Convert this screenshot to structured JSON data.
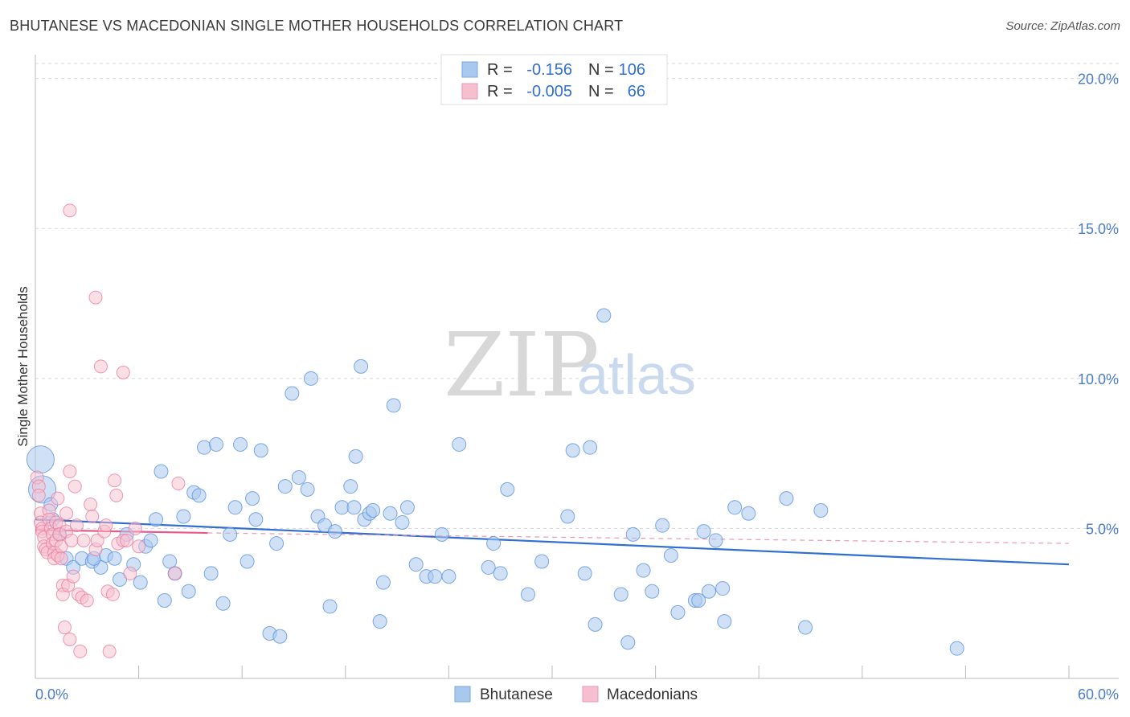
{
  "title": "BHUTANESE VS MACEDONIAN SINGLE MOTHER HOUSEHOLDS CORRELATION CHART",
  "source": "Source: ZipAtlas.com",
  "watermark": {
    "zip": "ZIP",
    "atlas": "atlas"
  },
  "colors": {
    "blue": "#5b93de",
    "blue_fill": "#a9c8ee",
    "pink": "#e8789c",
    "pink_fill": "#f5bfd0",
    "axis_text": "#4a7cc9",
    "grid": "#d8d8d8"
  },
  "legend": {
    "rows": [
      {
        "r_label": "R =",
        "r_value": "-0.156",
        "n_label": "N =",
        "n_value": "106"
      },
      {
        "r_label": "R =",
        "r_value": "-0.005",
        "n_label": "N =",
        "n_value": "66"
      }
    ]
  },
  "bottom_legend": {
    "series1": "Bhutanese",
    "series2": "Macedonians"
  },
  "chart_data": {
    "type": "scatter",
    "title": "BHUTANESE VS MACEDONIAN SINGLE MOTHER HOUSEHOLDS CORRELATION CHART",
    "xlabel": "",
    "ylabel": "Single Mother Households",
    "xlim": [
      0,
      60
    ],
    "ylim": [
      0,
      20.5
    ],
    "x_tick_labels": [
      "0.0%",
      "60.0%"
    ],
    "y_ticks": [
      5,
      10,
      15,
      20
    ],
    "y_tick_labels": [
      "5.0%",
      "10.0%",
      "15.0%",
      "20.0%"
    ],
    "series": [
      {
        "name": "Bhutanese",
        "r": -0.156,
        "n": 106,
        "trend": {
          "x": [
            0,
            60
          ],
          "y": [
            5.3,
            3.8
          ]
        },
        "points": [
          [
            0.3,
            7.3
          ],
          [
            0.4,
            6.3
          ],
          [
            0.9,
            5.8
          ],
          [
            1.0,
            5.3
          ],
          [
            1.4,
            4.8
          ],
          [
            1.8,
            4.0
          ],
          [
            2.2,
            3.7
          ],
          [
            2.7,
            4.0
          ],
          [
            3.3,
            3.9
          ],
          [
            3.8,
            3.7
          ],
          [
            3.4,
            4.0
          ],
          [
            4.1,
            4.1
          ],
          [
            4.6,
            4.0
          ],
          [
            4.9,
            3.3
          ],
          [
            5.3,
            4.8
          ],
          [
            5.7,
            3.8
          ],
          [
            6.1,
            3.2
          ],
          [
            6.4,
            4.4
          ],
          [
            6.7,
            4.6
          ],
          [
            7.0,
            5.3
          ],
          [
            7.3,
            6.9
          ],
          [
            7.5,
            2.6
          ],
          [
            7.8,
            3.9
          ],
          [
            8.1,
            3.5
          ],
          [
            8.6,
            5.4
          ],
          [
            8.9,
            2.9
          ],
          [
            9.2,
            6.2
          ],
          [
            9.5,
            6.1
          ],
          [
            9.8,
            7.7
          ],
          [
            10.2,
            3.5
          ],
          [
            10.5,
            7.8
          ],
          [
            10.9,
            2.5
          ],
          [
            11.3,
            4.8
          ],
          [
            11.6,
            5.7
          ],
          [
            11.9,
            7.8
          ],
          [
            12.3,
            3.9
          ],
          [
            12.6,
            6.0
          ],
          [
            12.8,
            5.3
          ],
          [
            13.1,
            7.6
          ],
          [
            13.6,
            1.5
          ],
          [
            14.0,
            4.5
          ],
          [
            14.2,
            1.4
          ],
          [
            14.5,
            6.4
          ],
          [
            14.9,
            9.5
          ],
          [
            15.3,
            6.7
          ],
          [
            15.8,
            6.3
          ],
          [
            16.0,
            10.0
          ],
          [
            16.4,
            5.4
          ],
          [
            16.8,
            5.1
          ],
          [
            17.1,
            2.4
          ],
          [
            17.4,
            4.9
          ],
          [
            17.8,
            5.7
          ],
          [
            18.3,
            6.4
          ],
          [
            18.5,
            5.7
          ],
          [
            18.6,
            7.4
          ],
          [
            18.9,
            10.4
          ],
          [
            19.1,
            5.3
          ],
          [
            19.4,
            5.5
          ],
          [
            19.6,
            5.6
          ],
          [
            20.0,
            1.9
          ],
          [
            20.2,
            3.2
          ],
          [
            20.6,
            5.5
          ],
          [
            20.8,
            9.1
          ],
          [
            21.3,
            5.2
          ],
          [
            21.6,
            5.7
          ],
          [
            22.1,
            3.8
          ],
          [
            22.7,
            3.4
          ],
          [
            23.2,
            3.4
          ],
          [
            23.6,
            4.8
          ],
          [
            24.0,
            3.4
          ],
          [
            24.6,
            7.8
          ],
          [
            26.3,
            3.7
          ],
          [
            26.6,
            4.5
          ],
          [
            27.0,
            3.5
          ],
          [
            27.4,
            6.3
          ],
          [
            28.6,
            2.8
          ],
          [
            29.4,
            3.9
          ],
          [
            30.9,
            5.4
          ],
          [
            31.2,
            7.6
          ],
          [
            31.9,
            3.5
          ],
          [
            32.2,
            7.7
          ],
          [
            32.5,
            1.8
          ],
          [
            33.0,
            12.1
          ],
          [
            34.0,
            2.8
          ],
          [
            34.4,
            1.2
          ],
          [
            34.7,
            4.8
          ],
          [
            35.3,
            3.6
          ],
          [
            35.8,
            2.9
          ],
          [
            36.4,
            5.1
          ],
          [
            36.9,
            4.1
          ],
          [
            37.3,
            2.2
          ],
          [
            38.3,
            2.6
          ],
          [
            38.5,
            2.6
          ],
          [
            38.8,
            4.9
          ],
          [
            39.1,
            2.9
          ],
          [
            39.5,
            4.6
          ],
          [
            39.9,
            3.0
          ],
          [
            40.0,
            1.9
          ],
          [
            40.6,
            5.7
          ],
          [
            41.4,
            5.5
          ],
          [
            43.6,
            6.0
          ],
          [
            44.7,
            1.7
          ],
          [
            45.6,
            5.6
          ],
          [
            53.5,
            1.0
          ]
        ],
        "point_sizes_note": "two large points near x≈0 at y≈7.3 and 6.3"
      },
      {
        "name": "Macedonians",
        "r": -0.005,
        "n": 66,
        "trend": {
          "x": [
            0,
            10
          ],
          "y": [
            4.95,
            4.85
          ]
        },
        "trend_dashed": {
          "x": [
            10,
            60
          ],
          "y": [
            4.85,
            4.5
          ]
        },
        "points": [
          [
            0.1,
            6.7
          ],
          [
            0.2,
            6.4
          ],
          [
            0.2,
            6.1
          ],
          [
            0.3,
            5.5
          ],
          [
            0.3,
            5.2
          ],
          [
            0.4,
            5.0
          ],
          [
            0.4,
            4.9
          ],
          [
            0.5,
            4.7
          ],
          [
            0.5,
            4.4
          ],
          [
            0.6,
            4.3
          ],
          [
            0.7,
            4.2
          ],
          [
            0.8,
            5.6
          ],
          [
            0.8,
            5.3
          ],
          [
            0.9,
            5.0
          ],
          [
            1.0,
            4.8
          ],
          [
            1.0,
            4.5
          ],
          [
            1.1,
            4.2
          ],
          [
            1.1,
            4.0
          ],
          [
            1.2,
            5.2
          ],
          [
            1.2,
            4.6
          ],
          [
            1.3,
            4.1
          ],
          [
            1.3,
            6.0
          ],
          [
            1.4,
            5.1
          ],
          [
            1.4,
            4.8
          ],
          [
            1.5,
            4.4
          ],
          [
            1.5,
            4.0
          ],
          [
            1.6,
            3.1
          ],
          [
            1.6,
            2.8
          ],
          [
            1.7,
            1.7
          ],
          [
            1.8,
            5.5
          ],
          [
            1.8,
            4.9
          ],
          [
            1.9,
            3.1
          ],
          [
            2.0,
            1.3
          ],
          [
            2.0,
            6.9
          ],
          [
            2.0,
            15.6
          ],
          [
            2.1,
            4.6
          ],
          [
            2.2,
            3.4
          ],
          [
            2.3,
            6.4
          ],
          [
            2.4,
            5.1
          ],
          [
            2.5,
            2.8
          ],
          [
            2.6,
            0.9
          ],
          [
            2.7,
            2.7
          ],
          [
            2.8,
            4.6
          ],
          [
            3.0,
            2.6
          ],
          [
            3.2,
            5.8
          ],
          [
            3.3,
            5.4
          ],
          [
            3.5,
            4.3
          ],
          [
            3.5,
            12.7
          ],
          [
            3.6,
            4.6
          ],
          [
            3.8,
            10.4
          ],
          [
            4.0,
            4.9
          ],
          [
            4.1,
            5.1
          ],
          [
            4.2,
            2.9
          ],
          [
            4.3,
            0.9
          ],
          [
            4.5,
            2.8
          ],
          [
            4.6,
            6.6
          ],
          [
            4.7,
            6.1
          ],
          [
            4.8,
            4.5
          ],
          [
            5.1,
            10.2
          ],
          [
            5.1,
            4.6
          ],
          [
            5.3,
            4.6
          ],
          [
            5.5,
            3.5
          ],
          [
            5.8,
            5.0
          ],
          [
            6.0,
            4.4
          ],
          [
            8.1,
            3.5
          ],
          [
            8.3,
            6.5
          ]
        ]
      }
    ]
  }
}
